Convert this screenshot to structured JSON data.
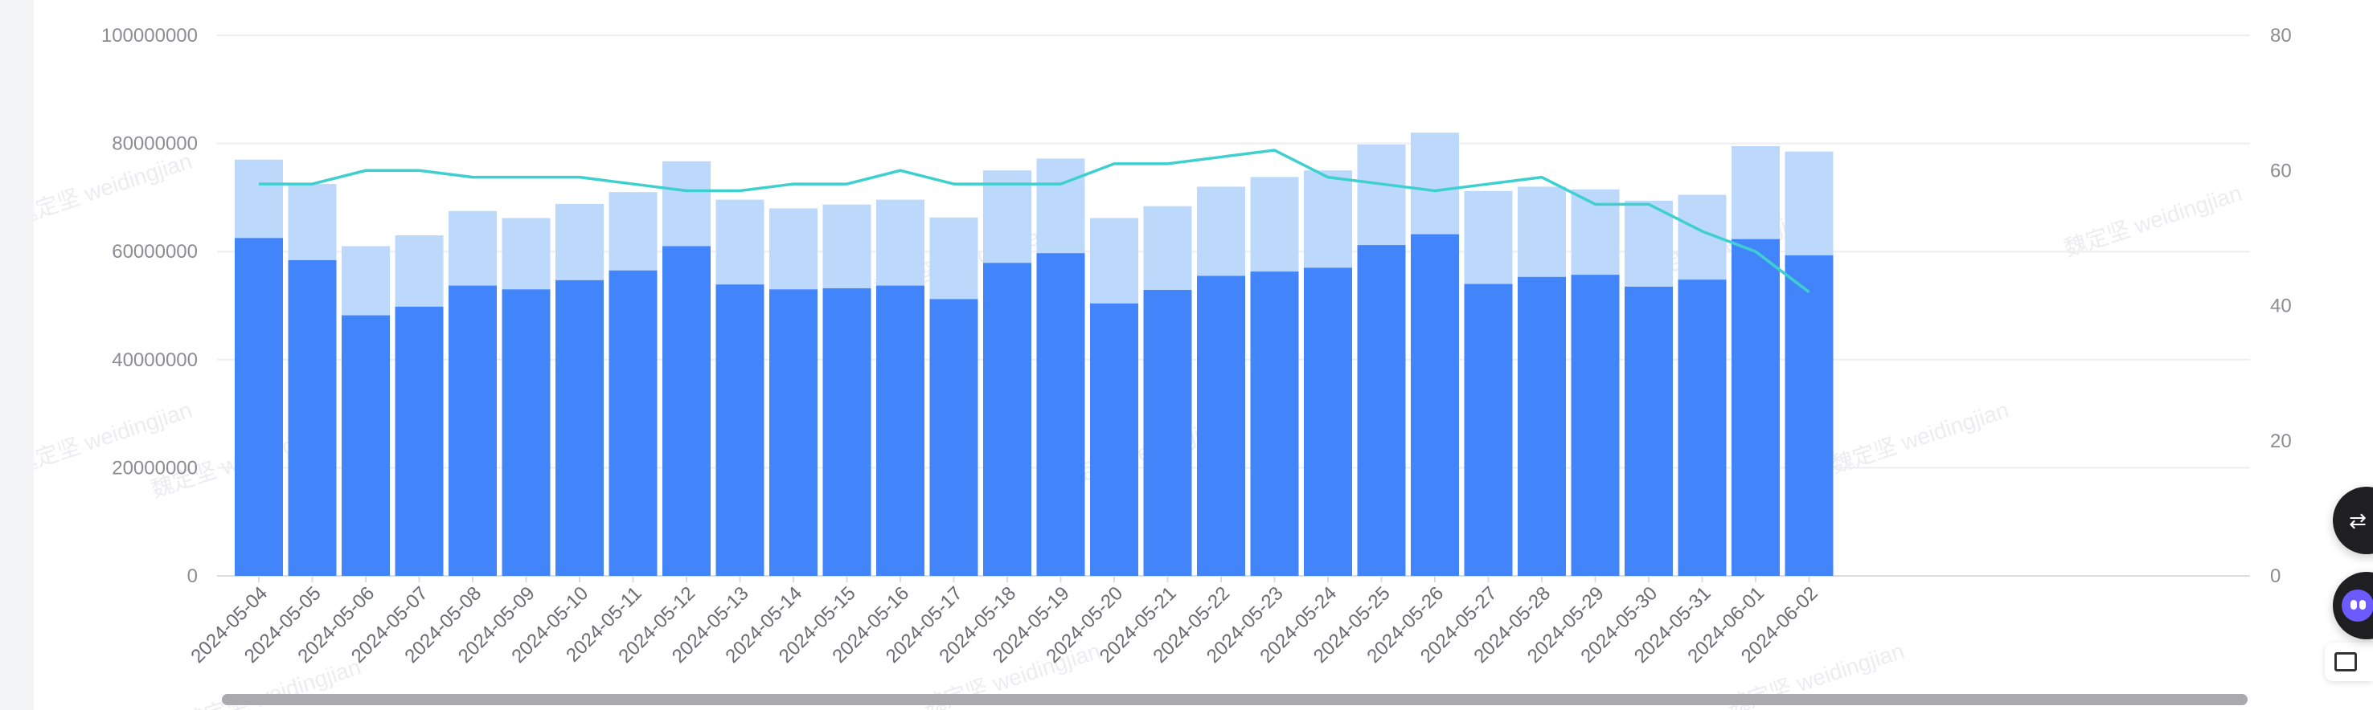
{
  "watermark": {
    "text": "魏定坚 weidingjian"
  },
  "chart_data": {
    "type": "bar",
    "bar_mode": "overlay",
    "categories": [
      "2024-05-04",
      "2024-05-05",
      "2024-05-06",
      "2024-05-07",
      "2024-05-08",
      "2024-05-09",
      "2024-05-10",
      "2024-05-11",
      "2024-05-12",
      "2024-05-13",
      "2024-05-14",
      "2024-05-15",
      "2024-05-16",
      "2024-05-17",
      "2024-05-18",
      "2024-05-19",
      "2024-05-20",
      "2024-05-21",
      "2024-05-22",
      "2024-05-23",
      "2024-05-24",
      "2024-05-25",
      "2024-05-26",
      "2024-05-27",
      "2024-05-28",
      "2024-05-29",
      "2024-05-30",
      "2024-05-31",
      "2024-06-01",
      "2024-06-02"
    ],
    "series": [
      {
        "type": "bar",
        "axis": "left",
        "color": "#bcd9fb",
        "values": [
          77000000,
          72500000,
          61000000,
          63000000,
          67500000,
          66200000,
          68800000,
          71000000,
          76700000,
          69600000,
          68000000,
          68700000,
          69600000,
          66300000,
          75000000,
          77200000,
          66200000,
          68400000,
          72000000,
          73800000,
          75000000,
          79800000,
          82000000,
          71200000,
          72000000,
          71500000,
          69400000,
          70500000,
          79500000,
          78500000
        ]
      },
      {
        "type": "bar",
        "axis": "left",
        "color": "#4285fb",
        "values": [
          62500000,
          58400000,
          48200000,
          49800000,
          53700000,
          53000000,
          54700000,
          56500000,
          61000000,
          53900000,
          53000000,
          53200000,
          53700000,
          51200000,
          57900000,
          59700000,
          50400000,
          52900000,
          55500000,
          56300000,
          57000000,
          61200000,
          63200000,
          54000000,
          55300000,
          55700000,
          53500000,
          54800000,
          62300000,
          59300000
        ]
      },
      {
        "type": "line",
        "axis": "right",
        "color": "#3ecfcf",
        "values": [
          58,
          58,
          60,
          60,
          59,
          59,
          59,
          58,
          57,
          57,
          58,
          58,
          60,
          58,
          58,
          58,
          61,
          61,
          62,
          63,
          59,
          58,
          57,
          58,
          59,
          55,
          55,
          51,
          48,
          42
        ]
      }
    ],
    "y_left": {
      "ticks": [
        "0",
        "20000000",
        "40000000",
        "60000000",
        "80000000",
        "100000000"
      ],
      "ylim": [
        0,
        100000000
      ]
    },
    "y_right": {
      "ticks": [
        "0",
        "20",
        "40",
        "60",
        "80"
      ],
      "ylim": [
        0,
        80
      ]
    },
    "grid": true,
    "legend": "none",
    "title": "",
    "xlabel": "",
    "ylabel": ""
  },
  "floating": {
    "translate_icon": "translate-icon",
    "assistant_icon": "assistant-icon",
    "screenshot_icon": "screenshot-icon"
  }
}
